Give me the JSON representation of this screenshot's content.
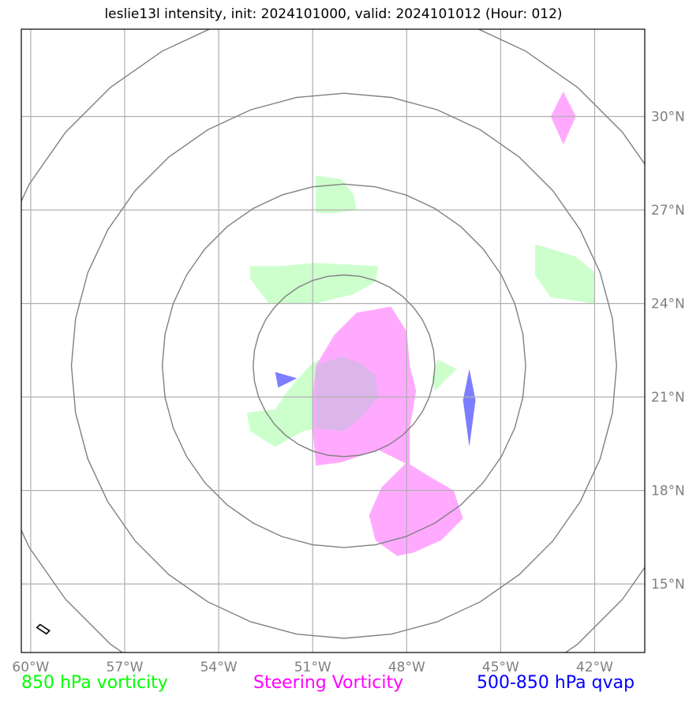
{
  "title": "leslie13l intensity, init: 2024101000, valid: 2024101012 (Hour: 012)",
  "map": {
    "lon_min": -60.3,
    "lon_max": -40.4,
    "lat_min": 12.8,
    "lat_max": 32.8,
    "center": {
      "lon": -50.0,
      "lat": 22.0
    },
    "lon_ticks": [
      {
        "value": -60,
        "label": "60°W"
      },
      {
        "value": -57,
        "label": "57°W"
      },
      {
        "value": -54,
        "label": "54°W"
      },
      {
        "value": -51,
        "label": "51°W"
      },
      {
        "value": -48,
        "label": "48°W"
      },
      {
        "value": -45,
        "label": "45°W"
      },
      {
        "value": -42,
        "label": "42°W"
      }
    ],
    "lat_ticks": [
      {
        "value": 15,
        "label": "15°N"
      },
      {
        "value": 18,
        "label": "18°N"
      },
      {
        "value": 21,
        "label": "21°N"
      },
      {
        "value": 24,
        "label": "24°N"
      },
      {
        "value": 27,
        "label": "27°N"
      },
      {
        "value": 30,
        "label": "30°N"
      }
    ],
    "range_rings_deg": [
      2.9,
      5.8,
      8.7,
      11.6
    ],
    "colors": {
      "ring": "#808080",
      "grid": "#b0b0b0",
      "vort850": "#ccffcc",
      "steering": "#ffaaff",
      "qvap": "#6666ff"
    },
    "shapes": {
      "vort850": [
        [
          [
            -50.9,
            28.1
          ],
          [
            -50.1,
            28.0
          ],
          [
            -49.7,
            27.5
          ],
          [
            -49.6,
            27.0
          ],
          [
            -50.3,
            26.9
          ],
          [
            -50.9,
            26.9
          ],
          [
            -50.9,
            27.6
          ]
        ],
        [
          [
            -53.0,
            25.2
          ],
          [
            -52.0,
            25.2
          ],
          [
            -50.9,
            25.3
          ],
          [
            -48.9,
            25.2
          ],
          [
            -49.0,
            24.7
          ],
          [
            -49.7,
            24.3
          ],
          [
            -50.9,
            24.0
          ],
          [
            -52.4,
            24.0
          ],
          [
            -52.7,
            24.4
          ],
          [
            -53.0,
            24.8
          ]
        ],
        [
          [
            -53.1,
            20.5
          ],
          [
            -52.2,
            20.6
          ],
          [
            -51.8,
            21.2
          ],
          [
            -51.1,
            22.0
          ],
          [
            -50.8,
            22.2
          ],
          [
            -50.8,
            20.0
          ],
          [
            -51.3,
            19.9
          ],
          [
            -52.2,
            19.4
          ],
          [
            -53.0,
            19.9
          ]
        ],
        [
          [
            -47.0,
            22.2
          ],
          [
            -46.4,
            21.9
          ],
          [
            -46.8,
            21.5
          ],
          [
            -47.1,
            21.2
          ],
          [
            -47.2,
            21.6
          ]
        ],
        [
          [
            -43.9,
            25.9
          ],
          [
            -42.6,
            25.5
          ],
          [
            -42.0,
            25.0
          ],
          [
            -42.0,
            24.0
          ],
          [
            -43.4,
            24.2
          ],
          [
            -43.9,
            24.9
          ]
        ],
        [
          [
            -48.0,
            20.8
          ],
          [
            -48.4,
            21.1
          ],
          [
            -49.0,
            21.7
          ],
          [
            -49.5,
            22.1
          ],
          [
            -50.1,
            22.3
          ],
          [
            -50.9,
            22.1
          ],
          [
            -50.9,
            20.9
          ],
          [
            -50.5,
            20.3
          ],
          [
            -49.6,
            20.1
          ],
          [
            -49.0,
            20.2
          ]
        ]
      ],
      "steering": [
        [
          [
            -43.4,
            30.0
          ],
          [
            -43.0,
            30.8
          ],
          [
            -42.6,
            30.0
          ],
          [
            -43.0,
            29.1
          ]
        ],
        [
          [
            -50.3,
            23.0
          ],
          [
            -49.6,
            23.7
          ],
          [
            -48.5,
            23.9
          ],
          [
            -48.0,
            23.1
          ],
          [
            -47.9,
            22.0
          ],
          [
            -47.7,
            21.2
          ],
          [
            -47.9,
            20.0
          ],
          [
            -47.9,
            18.8
          ],
          [
            -48.9,
            19.3
          ],
          [
            -49.5,
            19.1
          ],
          [
            -50.1,
            18.9
          ],
          [
            -50.9,
            18.8
          ],
          [
            -51.0,
            20.0
          ],
          [
            -51.0,
            21.0
          ],
          [
            -50.9,
            22.0
          ]
        ],
        [
          [
            -49.2,
            17.2
          ],
          [
            -48.8,
            18.1
          ],
          [
            -48.0,
            18.9
          ],
          [
            -47.2,
            18.4
          ],
          [
            -46.5,
            18.0
          ],
          [
            -46.2,
            17.1
          ],
          [
            -46.9,
            16.4
          ],
          [
            -47.8,
            16.0
          ],
          [
            -48.3,
            15.9
          ],
          [
            -49.0,
            16.4
          ]
        ]
      ],
      "qvap": [
        [
          [
            -52.2,
            21.8
          ],
          [
            -51.5,
            21.6
          ],
          [
            -52.1,
            21.3
          ]
        ],
        [
          [
            -46.0,
            21.9
          ],
          [
            -45.8,
            20.9
          ],
          [
            -46.0,
            19.4
          ],
          [
            -46.2,
            20.9
          ]
        ]
      ],
      "steering_overlap": [
        [
          [
            -50.9,
            22.0
          ],
          [
            -50.1,
            22.3
          ],
          [
            -49.5,
            22.1
          ],
          [
            -49.0,
            21.7
          ],
          [
            -48.9,
            21.0
          ],
          [
            -49.4,
            20.4
          ],
          [
            -50.0,
            19.9
          ],
          [
            -50.9,
            20.0
          ]
        ]
      ],
      "marker": [
        [
          -59.7,
          13.7
        ],
        [
          -59.4,
          13.5
        ],
        [
          -59.5,
          13.4
        ],
        [
          -59.8,
          13.6
        ]
      ]
    }
  },
  "legend": {
    "vort850": {
      "label": "850 hPa vorticity",
      "color": "#00ff00"
    },
    "steering": {
      "label": "Steering Vorticity",
      "color": "#ff00ff"
    },
    "qvap": {
      "label": "500-850 hPa qvap",
      "color": "#0000ff"
    }
  }
}
